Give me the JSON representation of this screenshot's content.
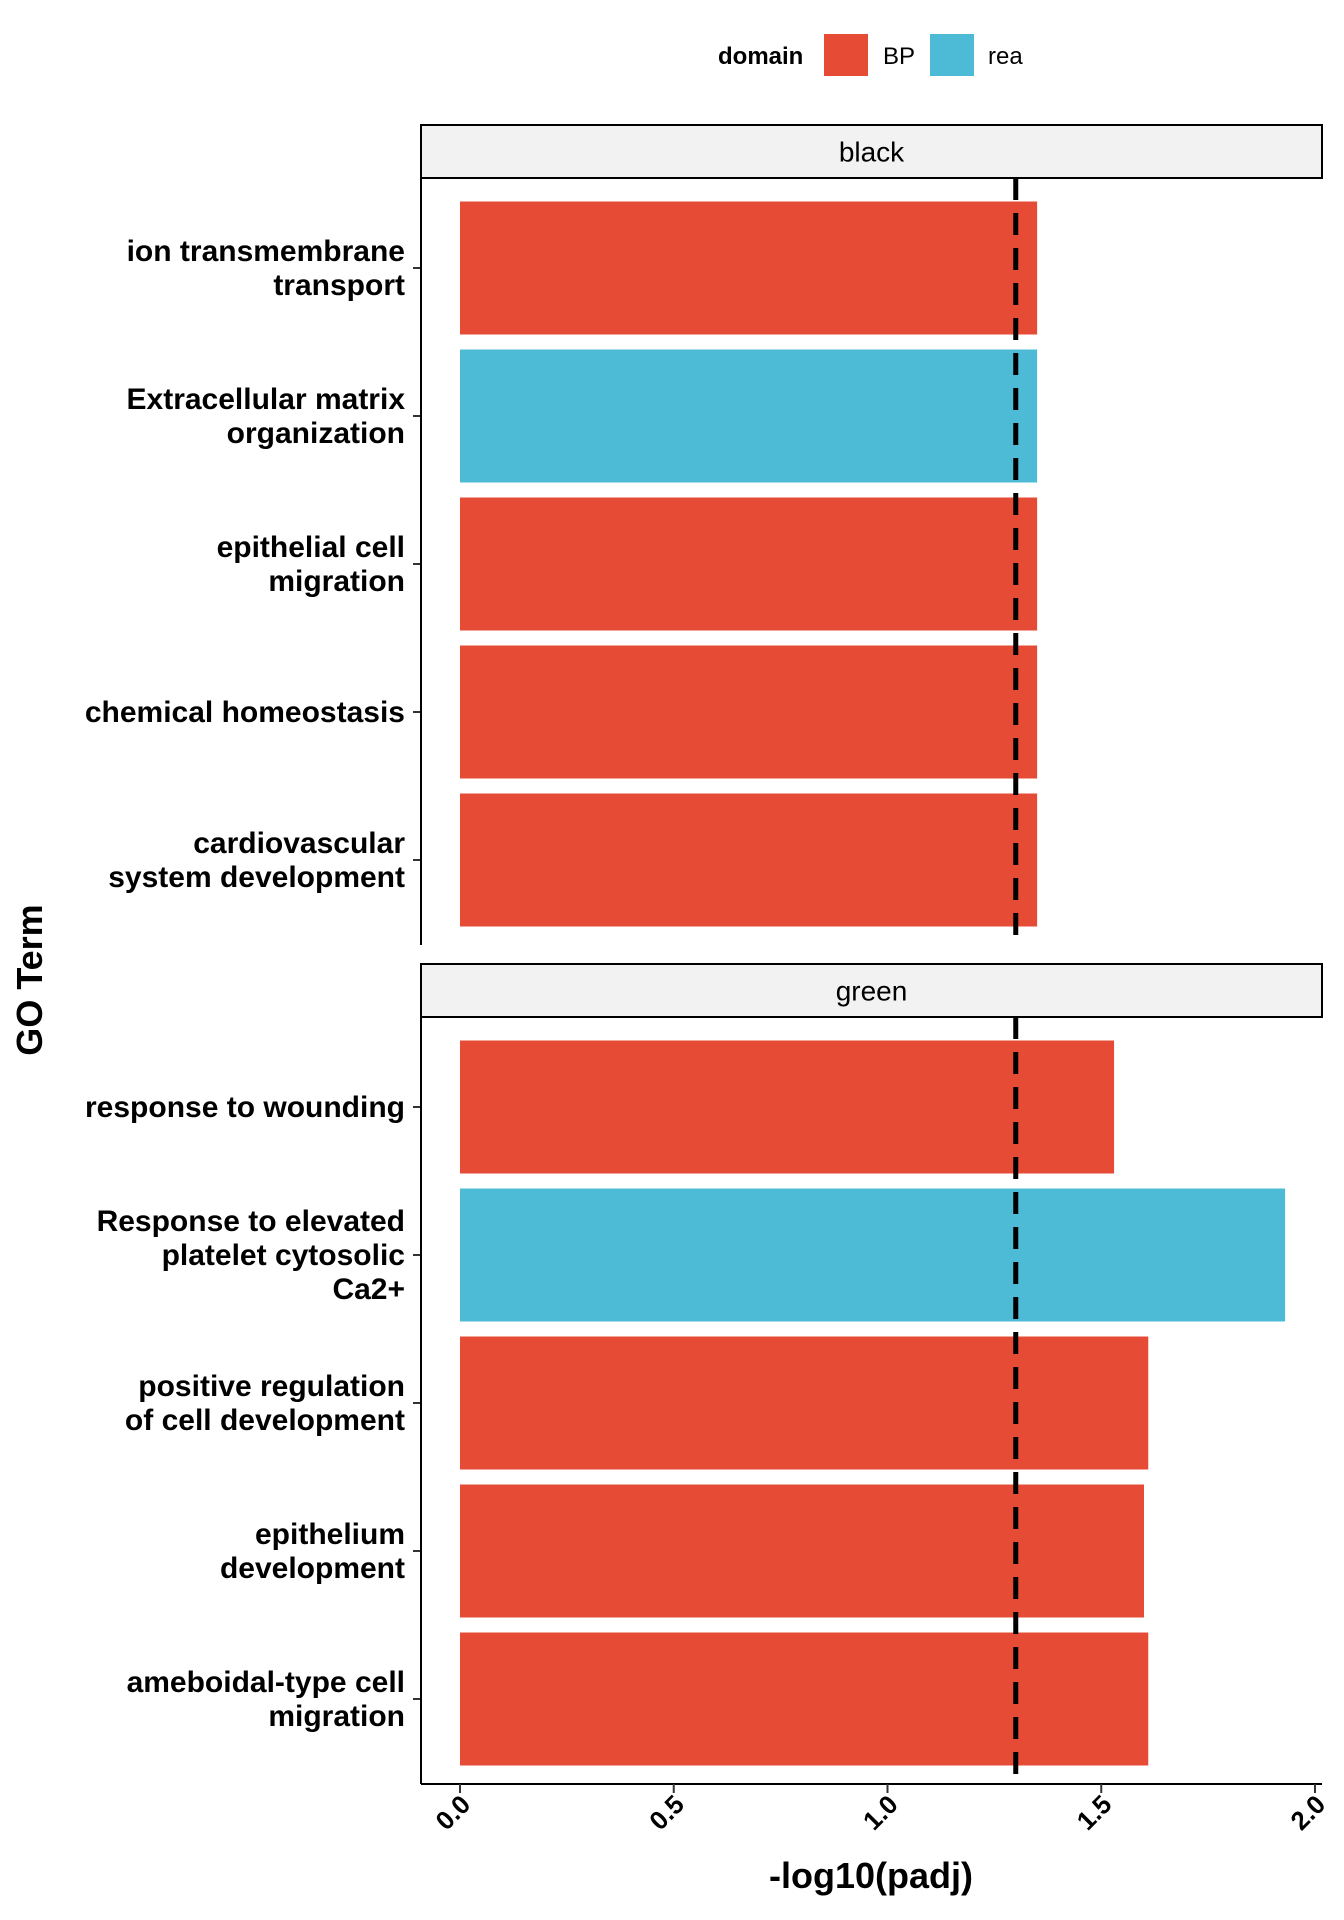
{
  "chart_data": {
    "type": "bar",
    "orientation": "horizontal",
    "xlabel": "-log10(padj)",
    "ylabel": "GO Term",
    "xlim": [
      0,
      2
    ],
    "x_ticks": [
      "0.0",
      "0.5",
      "1.0",
      "1.5",
      "2.0"
    ],
    "threshold_line": 1.3,
    "legend": {
      "title": "domain",
      "position": "top",
      "entries": [
        {
          "label": "BP",
          "color": "#E64B35"
        },
        {
          "label": "rea",
          "color": "#4DBBD5"
        }
      ]
    },
    "panels": [
      {
        "label": "black",
        "bars": [
          {
            "term": [
              "ion transmembrane",
              "transport"
            ],
            "value": 1.35,
            "domain": "BP"
          },
          {
            "term": [
              "Extracellular matrix",
              "organization"
            ],
            "value": 1.35,
            "domain": "rea"
          },
          {
            "term": [
              "epithelial cell",
              "migration"
            ],
            "value": 1.35,
            "domain": "BP"
          },
          {
            "term": [
              "chemical homeostasis"
            ],
            "value": 1.35,
            "domain": "BP"
          },
          {
            "term": [
              "cardiovascular",
              "system development"
            ],
            "value": 1.35,
            "domain": "BP"
          }
        ]
      },
      {
        "label": "green",
        "bars": [
          {
            "term": [
              "response to wounding"
            ],
            "value": 1.53,
            "domain": "BP"
          },
          {
            "term": [
              "Response to elevated",
              "platelet cytosolic",
              "Ca2+"
            ],
            "value": 1.93,
            "domain": "rea"
          },
          {
            "term": [
              "positive regulation",
              "of cell development"
            ],
            "value": 1.61,
            "domain": "BP"
          },
          {
            "term": [
              "epithelium",
              "development"
            ],
            "value": 1.6,
            "domain": "BP"
          },
          {
            "term": [
              "ameboidal-type cell",
              "migration"
            ],
            "value": 1.61,
            "domain": "BP"
          }
        ]
      }
    ]
  }
}
